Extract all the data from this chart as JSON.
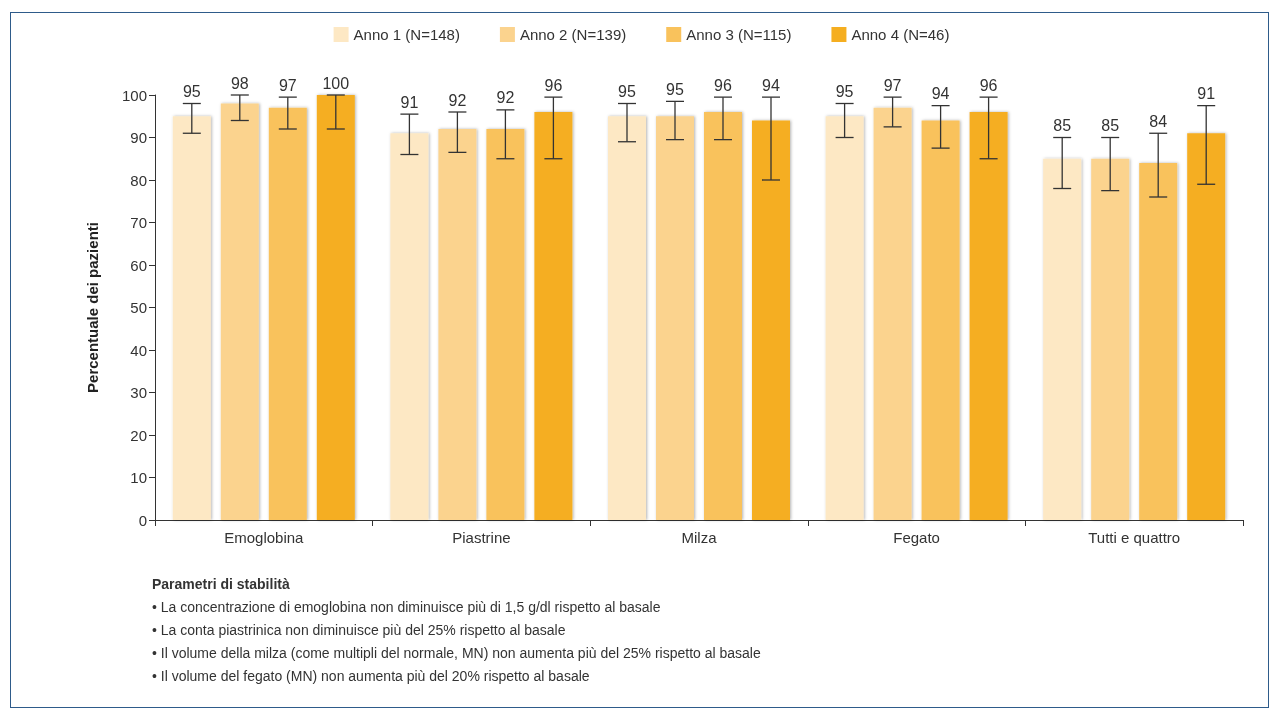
{
  "chart_data": {
    "type": "bar",
    "ylabel": "Percentuale dei pazienti",
    "categories": [
      "Emoglobina",
      "Piastrine",
      "Milza",
      "Fegato",
      "Tutti e quattro"
    ],
    "series": [
      {
        "name": "Anno 1 (N=148)",
        "color": "#fde8c4",
        "values": [
          95,
          91,
          95,
          95,
          85
        ],
        "errors": [
          [
            91,
            98
          ],
          [
            86,
            95.5
          ],
          [
            89,
            98
          ],
          [
            90,
            98
          ],
          [
            78,
            90
          ]
        ]
      },
      {
        "name": "Anno 2 (N=139)",
        "color": "#fbd38e",
        "values": [
          98,
          92,
          95,
          97,
          85
        ],
        "errors": [
          [
            94,
            100
          ],
          [
            86.5,
            96
          ],
          [
            89.5,
            98.5
          ],
          [
            92.5,
            99.5
          ],
          [
            77.5,
            90
          ]
        ]
      },
      {
        "name": "Anno 3 (N=115)",
        "color": "#f9c25c",
        "values": [
          97,
          92,
          96,
          94,
          84
        ],
        "errors": [
          [
            92,
            99.5
          ],
          [
            85,
            96.5
          ],
          [
            89.5,
            99.5
          ],
          [
            87.5,
            97.5
          ],
          [
            76,
            91
          ]
        ]
      },
      {
        "name": "Anno 4 (N=46)",
        "color": "#f5ae20",
        "values": [
          100,
          96,
          94,
          96,
          91
        ],
        "errors": [
          [
            92,
            100
          ],
          [
            85,
            99.5
          ],
          [
            80,
            99.5
          ],
          [
            85,
            99.5
          ],
          [
            79,
            97.5
          ]
        ]
      }
    ],
    "ylim": [
      0,
      100
    ],
    "yticks": [
      0,
      10,
      20,
      30,
      40,
      50,
      60,
      70,
      80,
      90,
      100
    ],
    "grid": false,
    "legend": "top",
    "data_labels": true,
    "annotations": [
      "Parametri di stabilità",
      "• La concentrazione di emoglobina non diminuisce più di 1,5 g/dl rispetto al basale",
      "• La conta piastrinica non diminuisce più del 25% rispetto al basale",
      "• Il volume della milza (come multipli del normale, MN) non aumenta più del 25% rispetto al basale",
      "• Il volume del fegato (MN) non aumenta più del 20% rispetto al basale"
    ]
  }
}
